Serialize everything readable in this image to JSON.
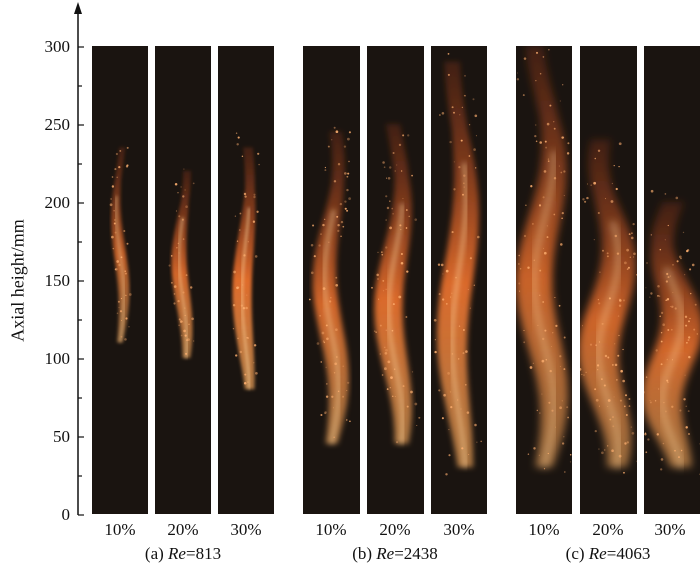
{
  "figure": {
    "y_axis": {
      "title": "Axial height/mm",
      "ticks": [
        "300",
        "250",
        "200",
        "150",
        "100",
        "50",
        "0"
      ]
    },
    "groups": [
      {
        "prefix": "(a) ",
        "re_symbol": "Re",
        "re_value": "=813",
        "panels": [
          {
            "label": "10%",
            "flame_bottom_mm": 110,
            "flame_top_mm": 235,
            "intensity": 0.55
          },
          {
            "label": "20%",
            "flame_bottom_mm": 100,
            "flame_top_mm": 220,
            "intensity": 0.75
          },
          {
            "label": "30%",
            "flame_bottom_mm": 80,
            "flame_top_mm": 235,
            "intensity": 0.9
          }
        ]
      },
      {
        "prefix": "(b) ",
        "re_symbol": "Re",
        "re_value": "=2438",
        "panels": [
          {
            "label": "10%",
            "flame_bottom_mm": 45,
            "flame_top_mm": 245,
            "intensity": 0.75
          },
          {
            "label": "20%",
            "flame_bottom_mm": 45,
            "flame_top_mm": 250,
            "intensity": 0.85
          },
          {
            "label": "30%",
            "flame_bottom_mm": 30,
            "flame_top_mm": 290,
            "intensity": 0.85
          }
        ]
      },
      {
        "prefix": "(c) ",
        "re_symbol": "Re",
        "re_value": "=4063",
        "panels": [
          {
            "label": "10%",
            "flame_bottom_mm": 30,
            "flame_top_mm": 300,
            "intensity": 0.65
          },
          {
            "label": "20%",
            "flame_bottom_mm": 30,
            "flame_top_mm": 240,
            "intensity": 0.7
          },
          {
            "label": "30%",
            "flame_bottom_mm": 30,
            "flame_top_mm": 200,
            "intensity": 0.75
          }
        ]
      }
    ]
  }
}
